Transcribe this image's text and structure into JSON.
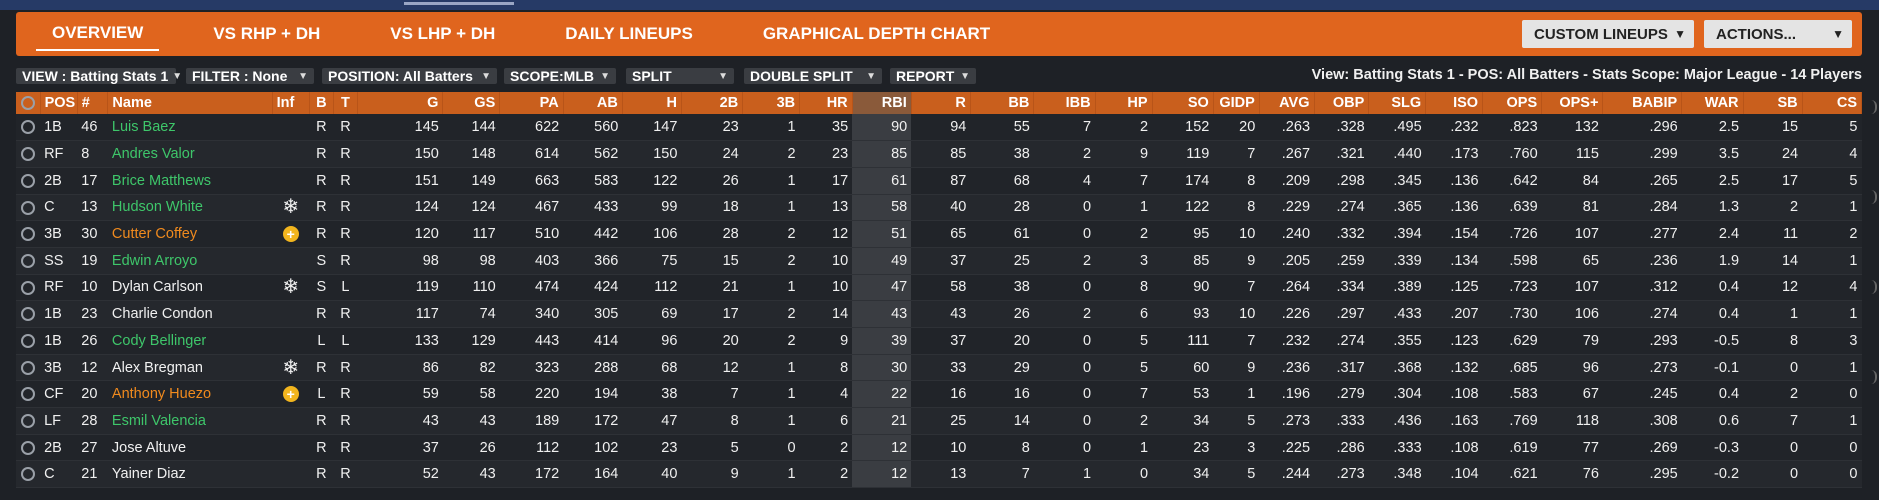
{
  "tabs": [
    {
      "label": "OVERVIEW",
      "active": true
    },
    {
      "label": "VS RHP + DH",
      "active": false
    },
    {
      "label": "VS LHP + DH",
      "active": false
    },
    {
      "label": "DAILY LINEUPS",
      "active": false
    },
    {
      "label": "GRAPHICAL DEPTH CHART",
      "active": false
    }
  ],
  "nav_buttons": {
    "custom_lineups": "CUSTOM LINEUPS",
    "actions": "ACTIONS..."
  },
  "filters": {
    "view": "VIEW : Batting Stats 1",
    "filter": "FILTER : None",
    "position": "POSITION: All Batters",
    "scope": "SCOPE:MLB",
    "split": "SPLIT",
    "double_split": "DOUBLE SPLIT",
    "report": "REPORT"
  },
  "view_info": "View: Batting Stats 1 - POS: All Batters - Stats Scope: Major League - 14 Players",
  "columns": [
    "POS",
    "#",
    "Name",
    "Inf",
    "B",
    "T",
    "G",
    "GS",
    "PA",
    "AB",
    "H",
    "2B",
    "3B",
    "HR",
    "RBI",
    "R",
    "BB",
    "IBB",
    "HP",
    "SO",
    "GIDP",
    "AVG",
    "OBP",
    "SLG",
    "ISO",
    "OPS",
    "OPS+",
    "BABIP",
    "WAR",
    "SB",
    "CS"
  ],
  "colors": {
    "green": "#3ec66a",
    "orange": "#f08a1e",
    "nav": "#e0651e"
  },
  "rows": [
    {
      "pos": "1B",
      "num": "46",
      "name": "Luis Baez",
      "color": "green",
      "inf": "",
      "b": "R",
      "t": "R",
      "stats": [
        "145",
        "144",
        "622",
        "560",
        "147",
        "23",
        "1",
        "35",
        "90",
        "94",
        "55",
        "7",
        "2",
        "152",
        "20",
        ".263",
        ".328",
        ".495",
        ".232",
        ".823",
        "132",
        ".296",
        "2.5",
        "15",
        "5"
      ]
    },
    {
      "pos": "RF",
      "num": "8",
      "name": "Andres Valor",
      "color": "green",
      "inf": "",
      "b": "R",
      "t": "R",
      "stats": [
        "150",
        "148",
        "614",
        "562",
        "150",
        "24",
        "2",
        "23",
        "85",
        "85",
        "38",
        "2",
        "9",
        "119",
        "7",
        ".267",
        ".321",
        ".440",
        ".173",
        ".760",
        "115",
        ".299",
        "3.5",
        "24",
        "4"
      ]
    },
    {
      "pos": "2B",
      "num": "17",
      "name": "Brice Matthews",
      "color": "green",
      "inf": "",
      "b": "R",
      "t": "R",
      "stats": [
        "151",
        "149",
        "663",
        "583",
        "122",
        "26",
        "1",
        "17",
        "61",
        "87",
        "68",
        "4",
        "7",
        "174",
        "8",
        ".209",
        ".298",
        ".345",
        ".136",
        ".642",
        "84",
        ".265",
        "2.5",
        "17",
        "5"
      ]
    },
    {
      "pos": "C",
      "num": "13",
      "name": "Hudson White",
      "color": "green",
      "inf": "snowflake-icon",
      "b": "R",
      "t": "R",
      "stats": [
        "124",
        "124",
        "467",
        "433",
        "99",
        "18",
        "1",
        "13",
        "58",
        "40",
        "28",
        "0",
        "1",
        "122",
        "8",
        ".229",
        ".274",
        ".365",
        ".136",
        ".639",
        "81",
        ".284",
        "1.3",
        "2",
        "1"
      ]
    },
    {
      "pos": "3B",
      "num": "30",
      "name": "Cutter Coffey",
      "color": "orange",
      "inf": "plus-icon",
      "b": "R",
      "t": "R",
      "stats": [
        "120",
        "117",
        "510",
        "442",
        "106",
        "28",
        "2",
        "12",
        "51",
        "65",
        "61",
        "0",
        "2",
        "95",
        "10",
        ".240",
        ".332",
        ".394",
        ".154",
        ".726",
        "107",
        ".277",
        "2.4",
        "11",
        "2"
      ]
    },
    {
      "pos": "SS",
      "num": "19",
      "name": "Edwin Arroyo",
      "color": "green",
      "inf": "",
      "b": "S",
      "t": "R",
      "stats": [
        "98",
        "98",
        "403",
        "366",
        "75",
        "15",
        "2",
        "10",
        "49",
        "37",
        "25",
        "2",
        "3",
        "85",
        "9",
        ".205",
        ".259",
        ".339",
        ".134",
        ".598",
        "65",
        ".236",
        "1.9",
        "14",
        "1"
      ]
    },
    {
      "pos": "RF",
      "num": "10",
      "name": "Dylan Carlson",
      "color": "white",
      "inf": "snowflake-icon",
      "b": "S",
      "t": "L",
      "stats": [
        "119",
        "110",
        "474",
        "424",
        "112",
        "21",
        "1",
        "10",
        "47",
        "58",
        "38",
        "0",
        "8",
        "90",
        "7",
        ".264",
        ".334",
        ".389",
        ".125",
        ".723",
        "107",
        ".312",
        "0.4",
        "12",
        "4"
      ]
    },
    {
      "pos": "1B",
      "num": "23",
      "name": "Charlie Condon",
      "color": "white",
      "inf": "",
      "b": "R",
      "t": "R",
      "stats": [
        "117",
        "74",
        "340",
        "305",
        "69",
        "17",
        "2",
        "14",
        "43",
        "43",
        "26",
        "2",
        "6",
        "93",
        "10",
        ".226",
        ".297",
        ".433",
        ".207",
        ".730",
        "106",
        ".274",
        "0.4",
        "1",
        "1"
      ]
    },
    {
      "pos": "1B",
      "num": "26",
      "name": "Cody Bellinger",
      "color": "green",
      "inf": "",
      "b": "L",
      "t": "L",
      "stats": [
        "133",
        "129",
        "443",
        "414",
        "96",
        "20",
        "2",
        "9",
        "39",
        "37",
        "20",
        "0",
        "5",
        "111",
        "7",
        ".232",
        ".274",
        ".355",
        ".123",
        ".629",
        "79",
        ".293",
        "-0.5",
        "8",
        "3"
      ]
    },
    {
      "pos": "3B",
      "num": "12",
      "name": "Alex Bregman",
      "color": "white",
      "inf": "snowflake-icon",
      "b": "R",
      "t": "R",
      "stats": [
        "86",
        "82",
        "323",
        "288",
        "68",
        "12",
        "1",
        "8",
        "30",
        "33",
        "29",
        "0",
        "5",
        "60",
        "9",
        ".236",
        ".317",
        ".368",
        ".132",
        ".685",
        "96",
        ".273",
        "-0.1",
        "0",
        "1"
      ]
    },
    {
      "pos": "CF",
      "num": "20",
      "name": "Anthony Huezo",
      "color": "orange",
      "inf": "plus-icon",
      "b": "L",
      "t": "R",
      "stats": [
        "59",
        "58",
        "220",
        "194",
        "38",
        "7",
        "1",
        "4",
        "22",
        "16",
        "16",
        "0",
        "7",
        "53",
        "1",
        ".196",
        ".279",
        ".304",
        ".108",
        ".583",
        "67",
        ".245",
        "0.4",
        "2",
        "0"
      ]
    },
    {
      "pos": "LF",
      "num": "28",
      "name": "Esmil Valencia",
      "color": "green",
      "inf": "",
      "b": "R",
      "t": "R",
      "stats": [
        "43",
        "43",
        "189",
        "172",
        "47",
        "8",
        "1",
        "6",
        "21",
        "25",
        "14",
        "0",
        "2",
        "34",
        "5",
        ".273",
        ".333",
        ".436",
        ".163",
        ".769",
        "118",
        ".308",
        "0.6",
        "7",
        "1"
      ]
    },
    {
      "pos": "2B",
      "num": "27",
      "name": "Jose Altuve",
      "color": "white",
      "inf": "",
      "b": "R",
      "t": "R",
      "stats": [
        "37",
        "26",
        "112",
        "102",
        "23",
        "5",
        "0",
        "2",
        "12",
        "10",
        "8",
        "0",
        "1",
        "23",
        "3",
        ".225",
        ".286",
        ".333",
        ".108",
        ".619",
        "77",
        ".269",
        "-0.3",
        "0",
        "0"
      ]
    },
    {
      "pos": "C",
      "num": "21",
      "name": "Yainer Diaz",
      "color": "white",
      "inf": "",
      "b": "R",
      "t": "R",
      "stats": [
        "52",
        "43",
        "172",
        "164",
        "40",
        "9",
        "1",
        "2",
        "12",
        "13",
        "7",
        "1",
        "0",
        "34",
        "5",
        ".244",
        ".273",
        ".348",
        ".104",
        ".621",
        "76",
        ".295",
        "-0.2",
        "0",
        "0"
      ]
    }
  ]
}
